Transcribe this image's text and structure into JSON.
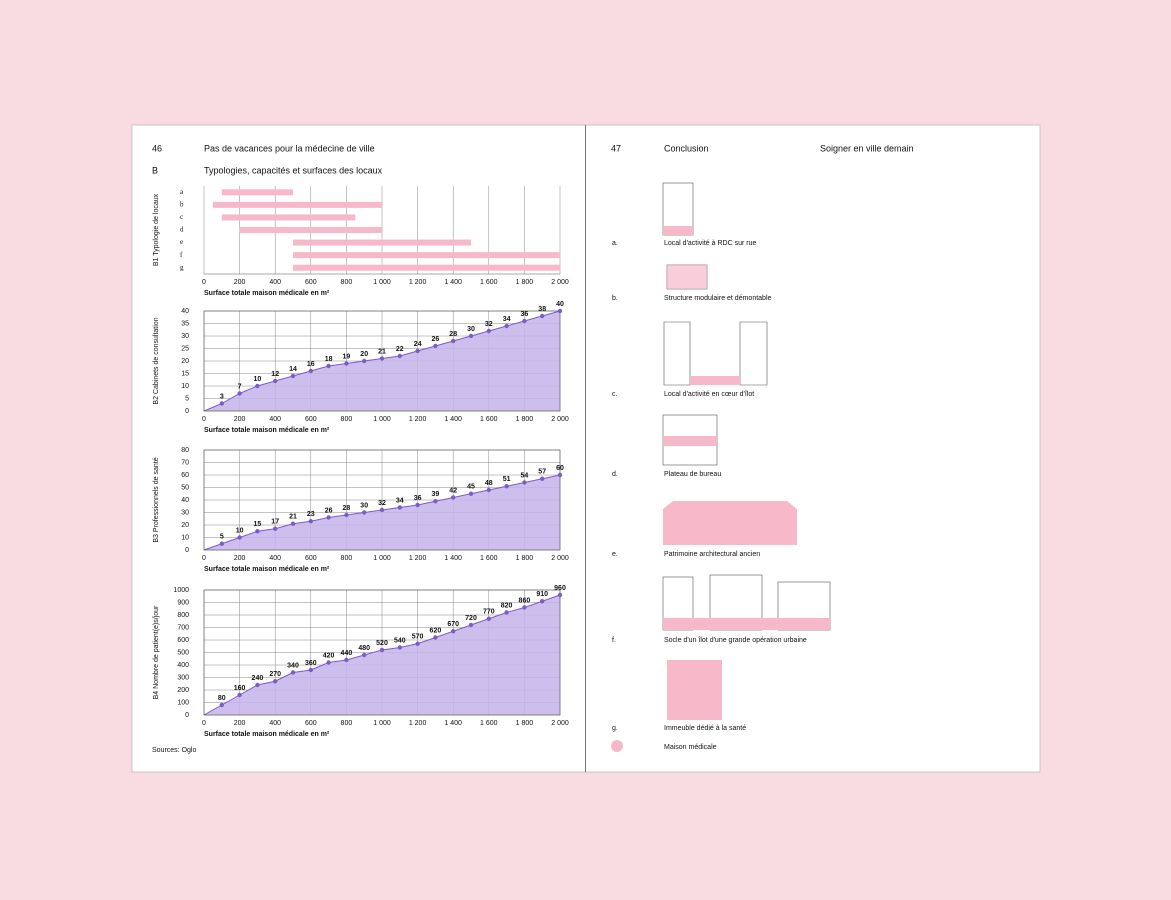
{
  "left_page": {
    "page_number": "46",
    "running_title": "Pas de vacances pour la médecine de ville",
    "section": "B",
    "section_title": "Typologies, capacités et surfaces des locaux",
    "source": "Sources: Oglo"
  },
  "chart_data": [
    {
      "type": "range_bar",
      "ylabel": "B1  Typologie de locaux",
      "xlabel": "Surface totale maison médicale en m²",
      "categories": [
        "a",
        "b",
        "c",
        "d",
        "e",
        "f",
        "g"
      ],
      "ranges": [
        [
          100,
          500
        ],
        [
          50,
          1000
        ],
        [
          100,
          850
        ],
        [
          200,
          1000
        ],
        [
          500,
          1500
        ],
        [
          500,
          2000
        ],
        [
          500,
          2000
        ]
      ],
      "color": "#f7b8c9",
      "xlim": [
        0,
        2000
      ],
      "xticks": [
        0,
        200,
        400,
        600,
        800,
        {
          "value": 1000,
          "label": "1 000"
        },
        {
          "value": 1200,
          "label": "1 200"
        },
        {
          "value": 1400,
          "label": "1 400"
        },
        {
          "value": 1600,
          "label": "1 600"
        },
        {
          "value": 1800,
          "label": "1 800"
        },
        {
          "value": 2000,
          "label": "2 000"
        }
      ],
      "grid": true
    },
    {
      "type": "area",
      "ylabel": "B2  Cabinets de consultation",
      "xlabel": "Surface totale maison médicale en m²",
      "x": [
        100,
        200,
        300,
        400,
        500,
        600,
        700,
        800,
        900,
        1000,
        1100,
        1200,
        1300,
        1400,
        1500,
        1600,
        1700,
        1800,
        1900,
        2000
      ],
      "values": [
        3,
        7,
        10,
        12,
        14,
        16,
        18,
        19,
        20,
        21,
        22,
        24,
        26,
        28,
        30,
        32,
        34,
        36,
        38,
        40
      ],
      "color": "#7b5cc8",
      "xlim": [
        0,
        2000
      ],
      "ylim": [
        0,
        40
      ],
      "xticks": [
        0,
        200,
        400,
        600,
        800,
        {
          "value": 1000,
          "label": "1 000"
        },
        {
          "value": 1200,
          "label": "1 200"
        },
        {
          "value": 1400,
          "label": "1 400"
        },
        {
          "value": 1600,
          "label": "1 600"
        },
        {
          "value": 1800,
          "label": "1 800"
        },
        {
          "value": 2000,
          "label": "2 000"
        }
      ],
      "yticks": [
        0,
        5,
        10,
        15,
        20,
        25,
        30,
        35,
        40
      ],
      "grid": true
    },
    {
      "type": "area",
      "ylabel": "B3  Professionnels de santé",
      "xlabel": "Surface totale maison médicale en m²",
      "x": [
        100,
        200,
        300,
        400,
        500,
        600,
        700,
        800,
        900,
        1000,
        1100,
        1200,
        1300,
        1400,
        1500,
        1600,
        1700,
        1800,
        1900,
        2000
      ],
      "values": [
        5,
        10,
        15,
        17,
        21,
        23,
        26,
        28,
        30,
        32,
        34,
        36,
        39,
        42,
        45,
        48,
        51,
        54,
        57,
        60
      ],
      "color": "#7b5cc8",
      "xlim": [
        0,
        2000
      ],
      "ylim": [
        0,
        80
      ],
      "xticks": [
        0,
        200,
        400,
        600,
        800,
        {
          "value": 1000,
          "label": "1 000"
        },
        {
          "value": 1200,
          "label": "1 200"
        },
        {
          "value": 1400,
          "label": "1 400"
        },
        {
          "value": 1600,
          "label": "1 600"
        },
        {
          "value": 1800,
          "label": "1 800"
        },
        {
          "value": 2000,
          "label": "2 000"
        }
      ],
      "yticks": [
        0,
        10,
        20,
        30,
        40,
        50,
        60,
        70,
        80
      ],
      "grid": true
    },
    {
      "type": "area",
      "ylabel": "B4  Nombre de patient(e)s/jour",
      "xlabel": "Surface totale maison médicale en m²",
      "x": [
        100,
        200,
        300,
        400,
        500,
        600,
        700,
        800,
        900,
        1000,
        1100,
        1200,
        1300,
        1400,
        1500,
        1600,
        1700,
        1800,
        1900,
        2000
      ],
      "values": [
        80,
        160,
        240,
        270,
        340,
        360,
        420,
        440,
        480,
        520,
        540,
        570,
        620,
        670,
        720,
        770,
        820,
        860,
        910,
        960
      ],
      "color": "#7b5cc8",
      "xlim": [
        0,
        2000
      ],
      "ylim": [
        0,
        1000
      ],
      "xticks": [
        0,
        200,
        400,
        600,
        800,
        {
          "value": 1000,
          "label": "1 000"
        },
        {
          "value": 1200,
          "label": "1 200"
        },
        {
          "value": 1400,
          "label": "1 400"
        },
        {
          "value": 1600,
          "label": "1 600"
        },
        {
          "value": 1800,
          "label": "1 800"
        },
        {
          "value": 2000,
          "label": "2 000"
        }
      ],
      "yticks": [
        0,
        100,
        200,
        300,
        400,
        500,
        600,
        700,
        800,
        900,
        1000
      ],
      "grid": true
    }
  ],
  "right_page": {
    "page_number": "47",
    "chapter": "Conclusion",
    "running_title": "Soigner en ville demain",
    "items": [
      {
        "letter": "a.",
        "label": "Local d'activité à RDC sur rue"
      },
      {
        "letter": "b.",
        "label": "Structure modulaire et démontable"
      },
      {
        "letter": "c.",
        "label": "Local d'activité en cœur d'îlot"
      },
      {
        "letter": "d.",
        "label": "Plateau de bureau"
      },
      {
        "letter": "e.",
        "label": "Patrimoine architectural ancien"
      },
      {
        "letter": "f.",
        "label": "Socle d'un îlot d'une grande opération urbaine"
      },
      {
        "letter": "g.",
        "label": "Immeuble dédié à la santé"
      }
    ],
    "legend": "Maison médicale"
  }
}
